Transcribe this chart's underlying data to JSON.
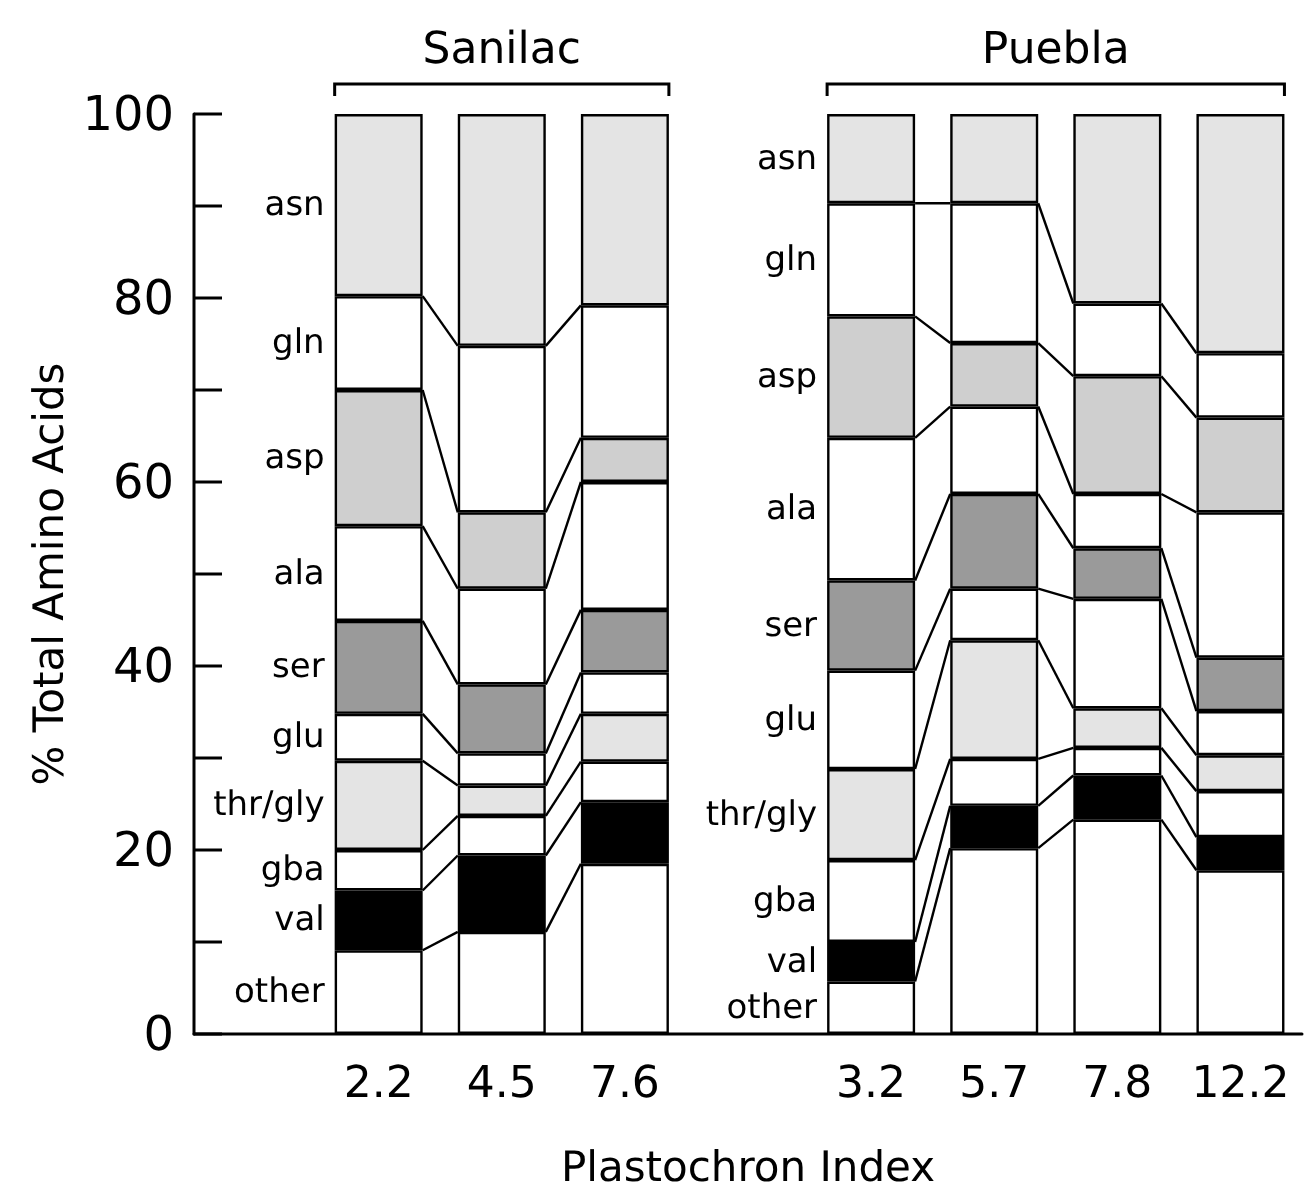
{
  "chart_data": {
    "type": "bar",
    "stacked": true,
    "legend": false,
    "grid": false,
    "xlabel": "Plastochron Index",
    "ylabel": "% Total Amino Acids",
    "annotations": [
      "Sanilac",
      "Puebla"
    ],
    "categories": [
      null,
      "2.2",
      "4.5",
      "7.6",
      null,
      "3.2",
      "5.7",
      "7.8",
      "12.2"
    ],
    "ylim": [
      0,
      100
    ],
    "yticks": [
      0,
      {
        "value": 10,
        "label": null
      },
      20,
      {
        "value": 30,
        "label": null
      },
      40,
      {
        "value": 50,
        "label": null
      },
      60,
      {
        "value": 70,
        "label": null
      },
      80,
      {
        "value": 90,
        "label": null
      },
      100
    ],
    "series": [
      {
        "name": "other",
        "color": "#ffffff",
        "values": [
          null,
          9.1,
          11.1,
          18.5,
          null,
          5.7,
          20.2,
          23.3,
          17.8
        ]
      },
      {
        "name": "val",
        "color": "#000000",
        "values": [
          null,
          6.5,
          8.3,
          6.7,
          null,
          4.3,
          4.6,
          4.8,
          3.6
        ]
      },
      {
        "name": "gba",
        "color": "#ffffff",
        "values": [
          null,
          4.4,
          4.3,
          4.4,
          null,
          8.9,
          5.1,
          3.0,
          5.0
        ]
      },
      {
        "name": "thr/gly",
        "color": "#e4e4e4",
        "values": [
          null,
          9.7,
          3.3,
          5.2,
          null,
          9.9,
          12.9,
          4.3,
          3.9
        ]
      },
      {
        "name": "glu",
        "color": "#ffffff",
        "values": [
          null,
          5.1,
          3.5,
          4.5,
          null,
          10.7,
          5.6,
          11.9,
          4.8
        ]
      },
      {
        "name": "ser",
        "color": "#9a9a9a",
        "values": [
          null,
          10.1,
          7.5,
          6.8,
          null,
          9.8,
          10.3,
          5.5,
          5.8
        ]
      },
      {
        "name": "ala",
        "color": "#ffffff",
        "values": [
          null,
          10.3,
          10.4,
          13.9,
          null,
          15.5,
          9.5,
          5.9,
          15.8
        ]
      },
      {
        "name": "asp",
        "color": "#cfcfcf",
        "values": [
          null,
          14.8,
          8.3,
          4.8,
          null,
          13.2,
          6.9,
          12.8,
          10.3
        ]
      },
      {
        "name": "gln",
        "color": "#ffffff",
        "values": [
          null,
          10.2,
          18.1,
          14.4,
          null,
          12.3,
          15.2,
          7.9,
          7.0
        ]
      },
      {
        "name": "asn",
        "color": "#e4e4e4",
        "values": [
          null,
          19.8,
          25.2,
          20.8,
          null,
          9.7,
          9.7,
          20.6,
          26.0
        ]
      }
    ]
  }
}
